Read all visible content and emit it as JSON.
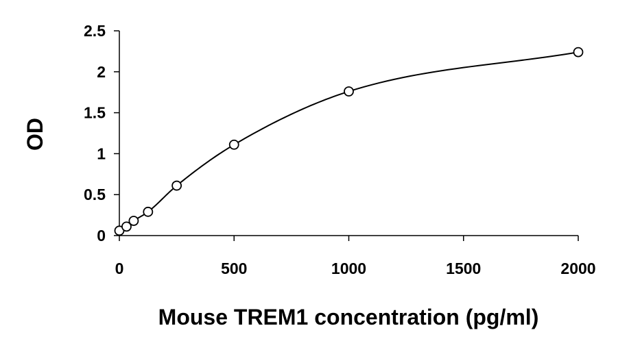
{
  "chart_data": {
    "type": "scatter",
    "title": "",
    "xlabel": "Mouse TREM1 concentration (pg/ml)",
    "ylabel": "OD",
    "xlim": [
      0,
      2000
    ],
    "ylim": [
      0,
      2.5
    ],
    "x_ticks": [
      0,
      500,
      1000,
      1500,
      2000
    ],
    "x_tick_labels": [
      "0",
      "500",
      "1000",
      "1500",
      "2000"
    ],
    "y_ticks": [
      0,
      0.5,
      1,
      1.5,
      2,
      2.5
    ],
    "y_tick_labels": [
      "0",
      "0.5",
      "1",
      "1.5",
      "2",
      "2.5"
    ],
    "grid": false,
    "legend": "none",
    "series": [
      {
        "x": [
          0,
          31.25,
          62.5,
          125,
          250,
          500,
          1000,
          2000
        ],
        "y": [
          0.06,
          0.11,
          0.18,
          0.29,
          0.61,
          1.11,
          1.76,
          2.24
        ],
        "marker": "open-circle",
        "color": "#000000",
        "fit": "smooth-curve"
      }
    ]
  }
}
